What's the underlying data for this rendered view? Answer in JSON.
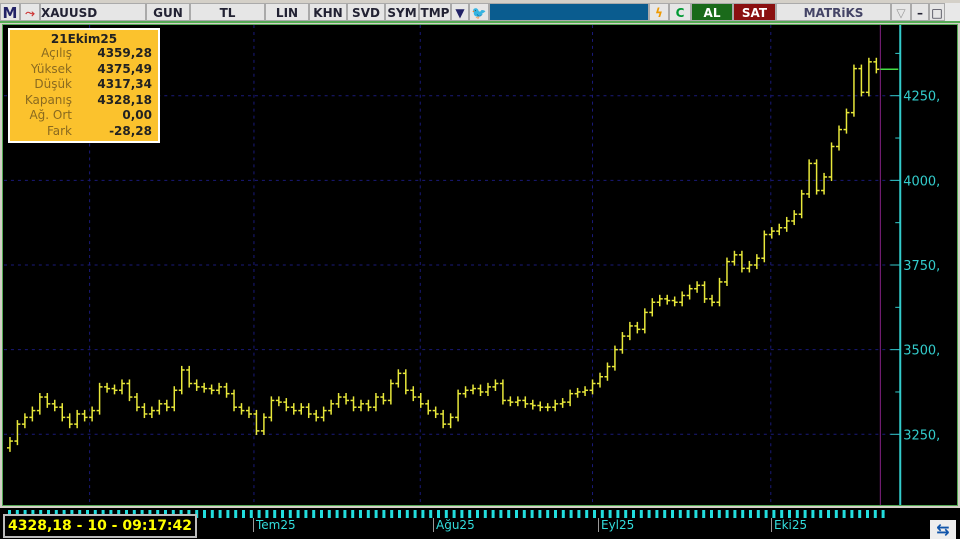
{
  "toolbar": {
    "logo": "M",
    "symbol": "XAUUSD",
    "buttons": [
      "GUN",
      "TL",
      "LIN",
      "KHN",
      "SVD",
      "SYM",
      "TMP"
    ],
    "al": "AL",
    "sat": "SAT",
    "brand": "MATRiKS"
  },
  "info": {
    "date": "21Ekim25",
    "rows": [
      {
        "label": "Açılış",
        "value": "4359,28"
      },
      {
        "label": "Yüksek",
        "value": "4375,49"
      },
      {
        "label": "Düşük",
        "value": "4317,34"
      },
      {
        "label": "Kapanış",
        "value": "4328,18"
      },
      {
        "label": "Ağ. Ort",
        "value": "0,00"
      },
      {
        "label": "Fark",
        "value": "-28,28"
      }
    ]
  },
  "status": "4328,18 - 10 - 09:17:42",
  "months": [
    "Tem25",
    "Ağu25",
    "Eyl25",
    "Eki25"
  ],
  "colors": {
    "bars": "#e8e83a",
    "axis": "#33cccc",
    "grid": "#1a1a7a",
    "last": "#44dd44",
    "cursor": "#882288"
  },
  "chart_data": {
    "type": "ohlc",
    "ylim": [
      3060,
      4400
    ],
    "yticks": [
      "3250,",
      "3500,",
      "3750,",
      "4000,",
      "4250,"
    ],
    "ytick_values": [
      3250,
      3500,
      3750,
      4000,
      4250
    ],
    "closes": [
      3230,
      3280,
      3300,
      3320,
      3360,
      3340,
      3330,
      3300,
      3280,
      3310,
      3300,
      3320,
      3390,
      3385,
      3380,
      3400,
      3360,
      3330,
      3310,
      3320,
      3340,
      3330,
      3380,
      3440,
      3400,
      3390,
      3385,
      3380,
      3390,
      3370,
      3330,
      3320,
      3310,
      3260,
      3300,
      3350,
      3345,
      3330,
      3320,
      3330,
      3310,
      3300,
      3320,
      3340,
      3360,
      3350,
      3330,
      3340,
      3330,
      3360,
      3350,
      3400,
      3430,
      3380,
      3360,
      3340,
      3320,
      3310,
      3280,
      3300,
      3370,
      3380,
      3385,
      3375,
      3390,
      3400,
      3350,
      3345,
      3350,
      3340,
      3335,
      3330,
      3330,
      3340,
      3345,
      3370,
      3375,
      3380,
      3400,
      3420,
      3450,
      3500,
      3540,
      3570,
      3560,
      3610,
      3640,
      3650,
      3645,
      3640,
      3660,
      3680,
      3690,
      3650,
      3640,
      3700,
      3760,
      3780,
      3740,
      3750,
      3770,
      3840,
      3850,
      3860,
      3880,
      3900,
      3960,
      4050,
      3970,
      4010,
      4100,
      4150,
      4200,
      4330,
      4260,
      4350,
      4328
    ]
  }
}
